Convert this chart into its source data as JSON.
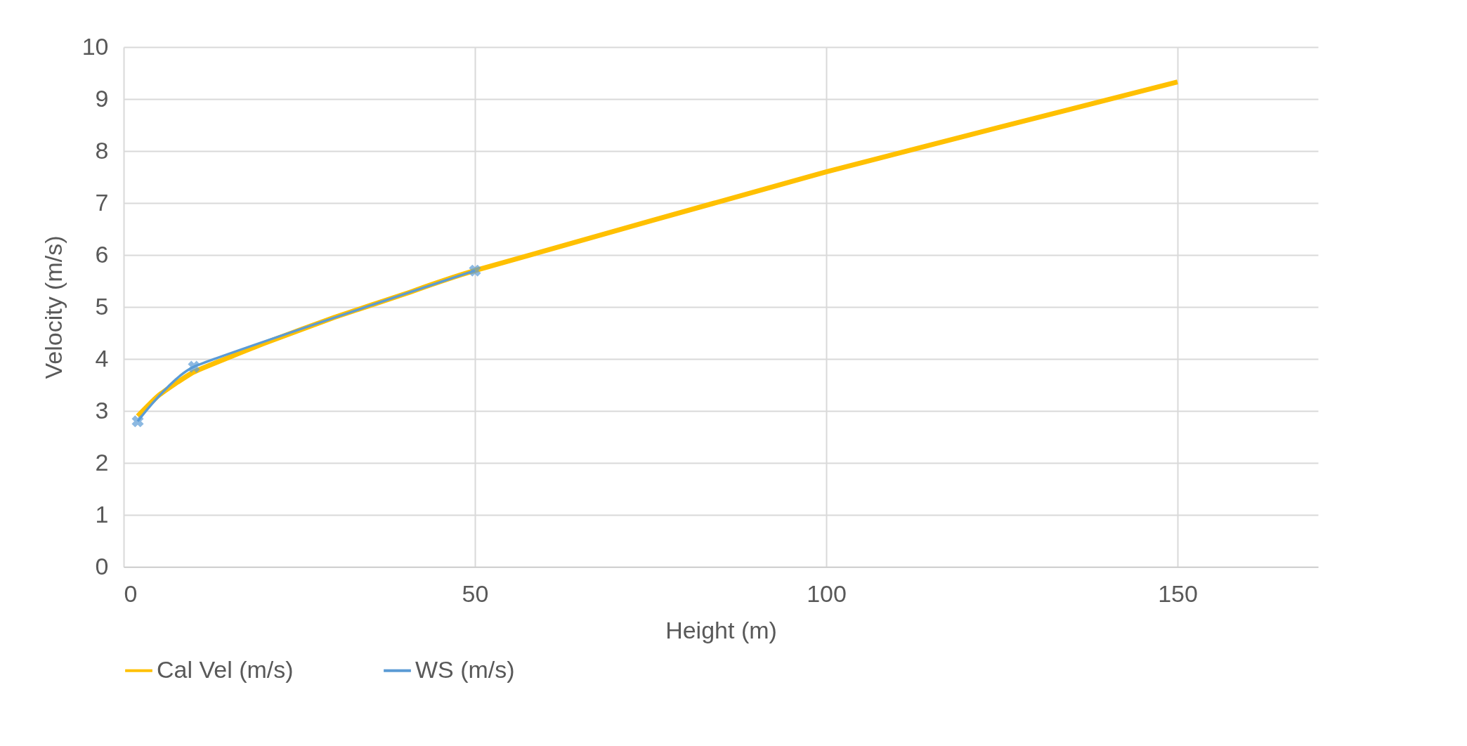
{
  "chart_data": {
    "type": "line",
    "xlabel": "Height (m)",
    "ylabel": "Velocity (m/s)",
    "xlim": [
      0,
      170
    ],
    "xticks": [
      0,
      50,
      100,
      150
    ],
    "ylim": [
      0,
      10
    ],
    "yticks": [
      0,
      1,
      2,
      3,
      4,
      5,
      6,
      7,
      8,
      9,
      10
    ],
    "grid": true,
    "legend": "bottom",
    "line_style": "solid",
    "series": [
      {
        "name": "Cal Vel (m/s)",
        "color": "#ffc000",
        "marker": "none",
        "x": [
          2,
          5,
          10,
          20,
          30,
          40,
          50,
          100,
          150
        ],
        "values": [
          2.9,
          3.3,
          3.75,
          4.3,
          4.8,
          5.25,
          5.7,
          7.6,
          9.33
        ]
      },
      {
        "name": "WS (m/s)",
        "color": "#5b9bd5",
        "marker": "cross",
        "x": [
          2,
          10,
          50
        ],
        "values": [
          2.8,
          3.85,
          5.7
        ]
      }
    ]
  }
}
